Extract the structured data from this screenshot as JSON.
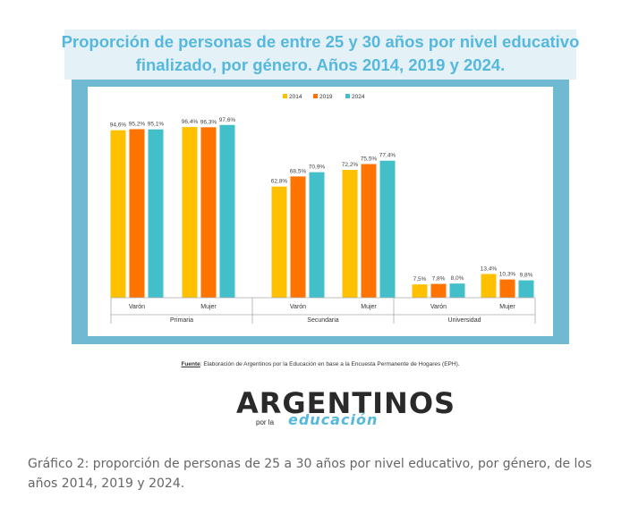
{
  "chart_data": {
    "type": "bar",
    "title": "Proporción de personas de entre 25 y 30 años por nivel educativo finalizado, por género. Años 2014, 2019 y 2024.",
    "groups": [
      {
        "name": "Primaria",
        "categories": [
          "Varón",
          "Mujer"
        ]
      },
      {
        "name": "Secundaria",
        "categories": [
          "Varón",
          "Mujer"
        ]
      },
      {
        "name": "Universidad",
        "categories": [
          "Varón",
          "Mujer"
        ]
      }
    ],
    "categories": [
      "Varón",
      "Mujer",
      "Varón",
      "Mujer",
      "Varón",
      "Mujer"
    ],
    "series": [
      {
        "name": "2014",
        "color": "#ffc000",
        "values": [
          94.6,
          96.4,
          62.8,
          72.2,
          7.5,
          13.4
        ],
        "labels": [
          "94,6%",
          "96,4%",
          "62,8%",
          "72,2%",
          "7,5%",
          "13,4%"
        ]
      },
      {
        "name": "2019",
        "color": "#ff7300",
        "values": [
          95.2,
          96.3,
          68.5,
          75.5,
          7.8,
          10.3
        ],
        "labels": [
          "95,2%",
          "96,3%",
          "68,5%",
          "75,5%",
          "7,8%",
          "10,3%"
        ]
      },
      {
        "name": "2024",
        "color": "#43bfc9",
        "values": [
          95.1,
          97.6,
          70.9,
          77.4,
          8.0,
          9.8
        ],
        "labels": [
          "95,1%",
          "97,6%",
          "70,9%",
          "77,4%",
          "8,0%",
          "9,8%"
        ]
      }
    ],
    "ylim": [
      0,
      100
    ],
    "legend": "top-center",
    "grid": false,
    "source_label": "Fuente",
    "source_text": ": Elaboración de Argentinos por la Educación en base a la Encuesta Permanente de Hogares (EPH)."
  },
  "logo": {
    "main": "ARGENTINOS",
    "sub": "por la",
    "edu": "educación"
  },
  "caption": "Gráfico 2: proporción de personas de 25 a 30 años por nivel educativo, por género, de los años 2014, 2019 y 2024."
}
